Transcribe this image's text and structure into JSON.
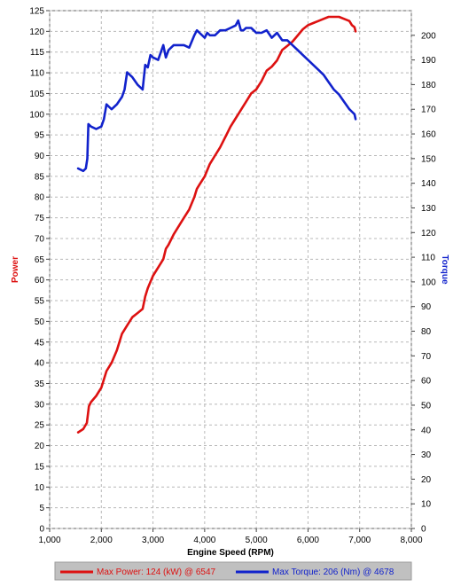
{
  "chart_data": {
    "type": "line",
    "xlabel": "Engine Speed (RPM)",
    "ylabel_left": "Power",
    "ylabel_right": "Torque",
    "xlim": [
      1000,
      8000
    ],
    "ylim_left": [
      0,
      125
    ],
    "ylim_right": [
      0,
      210
    ],
    "x_ticks": [
      "1,000",
      "2,000",
      "3,000",
      "4,000",
      "5,000",
      "6,000",
      "7,000",
      "8,000"
    ],
    "y_left_ticks": [
      "0",
      "5",
      "10",
      "15",
      "20",
      "25",
      "30",
      "35",
      "40",
      "45",
      "50",
      "55",
      "60",
      "65",
      "70",
      "75",
      "80",
      "85",
      "90",
      "95",
      "100",
      "105",
      "110",
      "115",
      "120",
      "125"
    ],
    "y_right_ticks": [
      "0",
      "10",
      "20",
      "30",
      "40",
      "50",
      "60",
      "70",
      "80",
      "90",
      "100",
      "110",
      "120",
      "130",
      "140",
      "150",
      "160",
      "170",
      "180",
      "190",
      "200"
    ],
    "grid": true,
    "legend_position": "bottom",
    "series": [
      {
        "name": "Max Power: 124 (kW) @ 6547",
        "axis": "left",
        "color": "#dd1111",
        "x": [
          1550,
          1650,
          1720,
          1760,
          1800,
          1900,
          2000,
          2100,
          2200,
          2300,
          2400,
          2500,
          2600,
          2700,
          2800,
          2850,
          2900,
          3000,
          3100,
          3200,
          3250,
          3300,
          3400,
          3500,
          3600,
          3700,
          3800,
          3850,
          3900,
          4000,
          4100,
          4200,
          4300,
          4400,
          4500,
          4600,
          4700,
          4800,
          4900,
          5000,
          5100,
          5200,
          5300,
          5400,
          5500,
          5600,
          5700,
          5800,
          5900,
          6000,
          6100,
          6200,
          6300,
          6400,
          6500,
          6600,
          6700,
          6800,
          6850,
          6900,
          6920
        ],
        "values": [
          23.2,
          24,
          25.5,
          29.5,
          30.5,
          32,
          34,
          38,
          40,
          43,
          47,
          49,
          51,
          52,
          53,
          56,
          58,
          61,
          63,
          65,
          67.5,
          68.5,
          71,
          73,
          75,
          77,
          80,
          82,
          83,
          85,
          88,
          90,
          92,
          94.5,
          97,
          99,
          101,
          103,
          105,
          106,
          108,
          110.5,
          111.5,
          113,
          115.5,
          116.5,
          117.5,
          119,
          120.5,
          121.5,
          122,
          122.5,
          123,
          123.5,
          123.5,
          123.5,
          123,
          122.5,
          121.5,
          121,
          120
        ]
      },
      {
        "name": "Max Torque: 206 (Nm) @ 4678",
        "axis": "right",
        "color": "#1122cc",
        "x": [
          1550,
          1650,
          1700,
          1730,
          1750,
          1800,
          1900,
          2000,
          2050,
          2100,
          2150,
          2200,
          2300,
          2400,
          2450,
          2500,
          2550,
          2600,
          2700,
          2800,
          2850,
          2900,
          2950,
          3000,
          3100,
          3200,
          3250,
          3300,
          3350,
          3400,
          3500,
          3600,
          3700,
          3800,
          3850,
          3900,
          4000,
          4050,
          4100,
          4200,
          4300,
          4400,
          4500,
          4600,
          4650,
          4700,
          4750,
          4800,
          4900,
          5000,
          5100,
          5200,
          5300,
          5400,
          5500,
          5600,
          5700,
          5800,
          5900,
          6000,
          6100,
          6200,
          6300,
          6400,
          6500,
          6600,
          6700,
          6800,
          6850,
          6900,
          6920
        ],
        "values": [
          146,
          145,
          146,
          150,
          164,
          163,
          162,
          163,
          166,
          172,
          171,
          170,
          172,
          175,
          178,
          185,
          184,
          183,
          180,
          178,
          188,
          187,
          192,
          191,
          190,
          196,
          191,
          194,
          195,
          196,
          196,
          196,
          195,
          200,
          202,
          201,
          199,
          201,
          200,
          200,
          202,
          202,
          203,
          204,
          206,
          202,
          202,
          203,
          203,
          201,
          201,
          202,
          199,
          201,
          198,
          198,
          196,
          194,
          192,
          190,
          188,
          186,
          184,
          181,
          178,
          176,
          173,
          170,
          169,
          168,
          166
        ]
      }
    ]
  }
}
